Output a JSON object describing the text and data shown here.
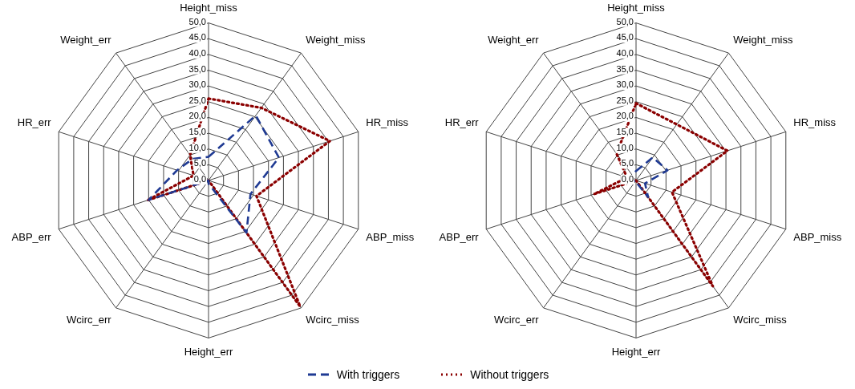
{
  "chart_data": [
    {
      "type": "radar",
      "categories": [
        "Height_miss",
        "Weight_miss",
        "HR_miss",
        "ABP_miss",
        "Wcirc_miss",
        "Height_err",
        "Wcirc_err",
        "ABP_err",
        "HR_err",
        "Weight_err"
      ],
      "series": [
        {
          "name": "With triggers",
          "color": "#1f3a93",
          "line_style": "dashed",
          "values": [
            7.5,
            25.5,
            23.5,
            14,
            20.5,
            1,
            0,
            20,
            10.5,
            8.5
          ]
        },
        {
          "name": "Without triggers",
          "color": "#8b0000",
          "line_style": "dotted",
          "values": [
            26,
            28.5,
            40.5,
            16,
            49.5,
            0,
            0,
            20.5,
            5,
            10
          ]
        }
      ],
      "ylim": [
        0,
        50
      ],
      "yticks": [
        {
          "value": 0,
          "label": "0,0"
        },
        {
          "value": 5,
          "label": "5,0"
        },
        {
          "value": 10,
          "label": "10,0"
        },
        {
          "value": 15,
          "label": "15,0"
        },
        {
          "value": 20,
          "label": "20,0"
        },
        {
          "value": 25,
          "label": "25,0"
        },
        {
          "value": 30,
          "label": "30,0"
        },
        {
          "value": 35,
          "label": "35,0"
        },
        {
          "value": 40,
          "label": "40,0"
        },
        {
          "value": 45,
          "label": "45,0"
        },
        {
          "value": 50,
          "label": "50,0"
        }
      ],
      "grid": true,
      "marker": "none",
      "legend": "bottom"
    },
    {
      "type": "radar",
      "categories": [
        "Height_miss",
        "Weight_miss",
        "HR_miss",
        "ABP_miss",
        "Wcirc_miss",
        "Height_err",
        "Wcirc_err",
        "ABP_err",
        "HR_err",
        "Weight_err"
      ],
      "series": [
        {
          "color": "#1f3a93",
          "line_style": "dashed",
          "values": [
            3,
            9,
            10.5,
            3,
            6.5,
            0.5,
            0,
            1,
            1,
            2
          ]
        },
        {
          "color": "#8b0000",
          "line_style": "dotted",
          "values": [
            24.5,
            22,
            30.5,
            12,
            41.5,
            0,
            0,
            14,
            3,
            10.5
          ]
        }
      ],
      "ylim": [
        0,
        50
      ],
      "yticks": [
        {
          "value": 0,
          "label": "0,0"
        },
        {
          "value": 5,
          "label": "5,0"
        },
        {
          "value": 10,
          "label": "10,0"
        },
        {
          "value": 15,
          "label": "15,0"
        },
        {
          "value": 20,
          "label": "20,0"
        },
        {
          "value": 25,
          "label": "25,0"
        },
        {
          "value": 30,
          "label": "30,0"
        },
        {
          "value": 35,
          "label": "35,0"
        },
        {
          "value": 40,
          "label": "40,0"
        },
        {
          "value": 45,
          "label": "45,0"
        },
        {
          "value": 50,
          "label": "50,0"
        }
      ],
      "grid": true,
      "marker": "none"
    }
  ]
}
